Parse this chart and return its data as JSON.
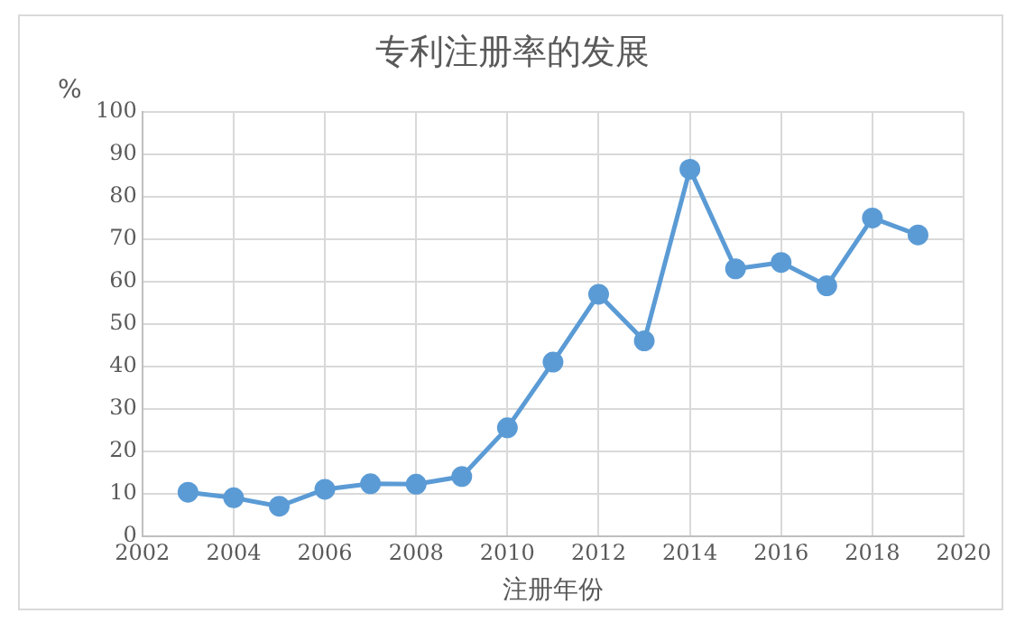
{
  "chart_data": {
    "type": "line",
    "title": "专利注册率的发展",
    "xlabel": "注册年份",
    "ylabel": "%",
    "x": [
      2003,
      2004,
      2005,
      2006,
      2007,
      2008,
      2009,
      2010,
      2011,
      2012,
      2013,
      2014,
      2015,
      2016,
      2017,
      2018,
      2019
    ],
    "series": [
      {
        "color": "#5b9bd5",
        "values": [
          10.3,
          9,
          7,
          11,
          12.3,
          12.2,
          14,
          25.5,
          41,
          57,
          46,
          86.5,
          63,
          64.5,
          59,
          75,
          71
        ]
      }
    ],
    "xlim": [
      2002,
      2020
    ],
    "xticks": [
      2002,
      2004,
      2006,
      2008,
      2010,
      2012,
      2014,
      2016,
      2018,
      2020
    ],
    "ylim": [
      0,
      100
    ],
    "yticks": [
      0,
      10,
      20,
      30,
      40,
      50,
      60,
      70,
      80,
      90,
      100
    ],
    "grid": true,
    "legend": false,
    "marker": "circle",
    "line_style": "solid"
  }
}
